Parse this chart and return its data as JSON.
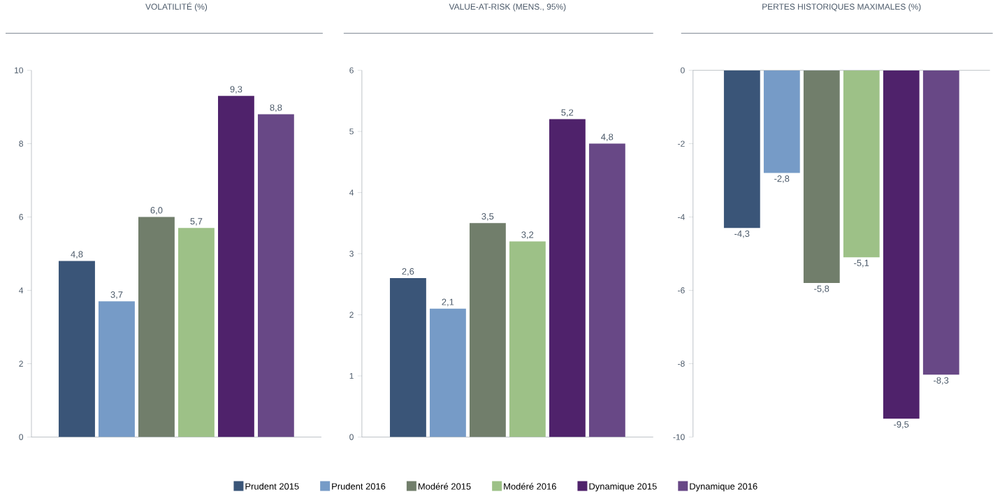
{
  "chart_data": [
    {
      "type": "bar",
      "title": "VOLATILITÉ (%)",
      "categories": [
        null
      ],
      "ylim": [
        0,
        10
      ],
      "yticks": [
        0,
        2,
        4,
        6,
        8,
        10
      ],
      "legend": "bottom",
      "series": [
        {
          "name": "Prudent 2015",
          "color": "#3a5578",
          "values": [
            4.8
          ],
          "value_labels": [
            "4,8"
          ]
        },
        {
          "name": "Prudent 2016",
          "color": "#769bc7",
          "values": [
            3.7
          ],
          "value_labels": [
            "3,7"
          ]
        },
        {
          "name": "Modéré 2015",
          "color": "#717e6b",
          "values": [
            6.0
          ],
          "value_labels": [
            "6,0"
          ]
        },
        {
          "name": "Modéré 2016",
          "color": "#9dc187",
          "values": [
            5.7
          ],
          "value_labels": [
            "5,7"
          ]
        },
        {
          "name": "Dynamique 2015",
          "color": "#4f226b",
          "values": [
            9.3
          ],
          "value_labels": [
            "9,3"
          ]
        },
        {
          "name": "Dynamique 2016",
          "color": "#684886",
          "values": [
            8.8
          ],
          "value_labels": [
            "8,8"
          ]
        }
      ]
    },
    {
      "type": "bar",
      "title": "VALUE-AT-RISK (MENS., 95%)",
      "categories": [
        null
      ],
      "ylim": [
        0,
        6
      ],
      "yticks": [
        0,
        1,
        2,
        3,
        4,
        5,
        6
      ],
      "series": [
        {
          "color": "#3a5578",
          "values": [
            2.6
          ],
          "value_labels": [
            "2,6"
          ]
        },
        {
          "color": "#769bc7",
          "values": [
            2.1
          ],
          "value_labels": [
            "2,1"
          ]
        },
        {
          "color": "#717e6b",
          "values": [
            3.5
          ],
          "value_labels": [
            "3,5"
          ]
        },
        {
          "color": "#9dc187",
          "values": [
            3.2
          ],
          "value_labels": [
            "3,2"
          ]
        },
        {
          "color": "#4f226b",
          "values": [
            5.2
          ],
          "value_labels": [
            "5,2"
          ]
        },
        {
          "color": "#684886",
          "values": [
            4.8
          ],
          "value_labels": [
            "4,8"
          ]
        }
      ]
    },
    {
      "type": "bar",
      "title": "PERTES HISTORIQUES MAXIMALES (%)",
      "categories": [
        null
      ],
      "ylim": [
        -10,
        0
      ],
      "yticks": [
        -10,
        -8,
        -6,
        -4,
        -2,
        0
      ],
      "series": [
        {
          "color": "#3a5578",
          "values": [
            -4.3
          ],
          "value_labels": [
            "-4,3"
          ]
        },
        {
          "color": "#769bc7",
          "values": [
            -2.8
          ],
          "value_labels": [
            "-2,8"
          ]
        },
        {
          "color": "#717e6b",
          "values": [
            -5.8
          ],
          "value_labels": [
            "-5,8"
          ]
        },
        {
          "color": "#9dc187",
          "values": [
            -5.1
          ],
          "value_labels": [
            "-5,1"
          ]
        },
        {
          "color": "#4f226b",
          "values": [
            -9.5
          ],
          "value_labels": [
            "-9,5"
          ]
        },
        {
          "color": "#684886",
          "values": [
            -8.3
          ],
          "value_labels": [
            "-8,3"
          ]
        }
      ]
    }
  ]
}
